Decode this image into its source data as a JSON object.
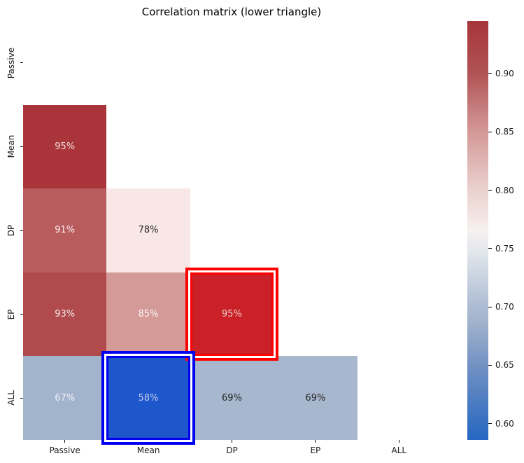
{
  "chart_data": {
    "type": "heatmap",
    "title": "Correlation matrix (lower triangle)",
    "x_categories": [
      "Passive",
      "Mean",
      "DP",
      "EP",
      "ALL"
    ],
    "y_categories": [
      "Passive",
      "Mean",
      "DP",
      "EP",
      "ALL"
    ],
    "triangle": "lower, diagonal excluded",
    "grid": false,
    "cells": [
      {
        "row": 1,
        "col": 0,
        "row_label": "Mean",
        "col_label": "Passive",
        "label": "95%",
        "value": 0.95,
        "bg": "#a93439",
        "text_color": "#f2e2e1"
      },
      {
        "row": 2,
        "col": 0,
        "row_label": "DP",
        "col_label": "Passive",
        "label": "91%",
        "value": 0.91,
        "bg": "#b95c5e",
        "text_color": "#f8eded"
      },
      {
        "row": 2,
        "col": 1,
        "row_label": "DP",
        "col_label": "Mean",
        "label": "78%",
        "value": 0.78,
        "bg": "#f8e7e6",
        "text_color": "#262626"
      },
      {
        "row": 3,
        "col": 0,
        "row_label": "EP",
        "col_label": "Passive",
        "label": "93%",
        "value": 0.93,
        "bg": "#b04a4c",
        "text_color": "#f5e8e8"
      },
      {
        "row": 3,
        "col": 1,
        "row_label": "EP",
        "col_label": "Mean",
        "label": "85%",
        "value": 0.85,
        "bg": "#d49a98",
        "text_color": "#fcf5f4"
      },
      {
        "row": 3,
        "col": 2,
        "row_label": "EP",
        "col_label": "DP",
        "label": "95%",
        "value": 0.95,
        "bg": "#c92127",
        "text_color": "#edc9c7",
        "highlight": "red"
      },
      {
        "row": 4,
        "col": 0,
        "row_label": "ALL",
        "col_label": "Passive",
        "label": "67%",
        "value": 0.67,
        "bg": "#a2b3cc",
        "text_color": "#eff2f7"
      },
      {
        "row": 4,
        "col": 1,
        "row_label": "ALL",
        "col_label": "Mean",
        "label": "58%",
        "value": 0.58,
        "bg": "#1e56cc",
        "text_color": "#c4cee9",
        "highlight": "blue"
      },
      {
        "row": 4,
        "col": 2,
        "row_label": "ALL",
        "col_label": "DP",
        "label": "69%",
        "value": 0.69,
        "bg": "#a7b7ce",
        "text_color": "#262626"
      },
      {
        "row": 4,
        "col": 3,
        "row_label": "ALL",
        "col_label": "EP",
        "label": "69%",
        "value": 0.69,
        "bg": "#a7b7ce",
        "text_color": "#262626"
      }
    ],
    "highlight_colors": {
      "red": "#ff0000",
      "blue": "#0000ee"
    },
    "colorbar": {
      "position": "right",
      "vmin": 0.586,
      "vmax": 0.945,
      "tick_labels": [
        "0.90",
        "0.85",
        "0.80",
        "0.75",
        "0.70",
        "0.65",
        "0.60"
      ],
      "tick_values": [
        0.9,
        0.85,
        0.8,
        0.75,
        0.7,
        0.65,
        0.6
      ],
      "gradient_stops": [
        {
          "pos": 0,
          "color": "#a63539"
        },
        {
          "pos": 12.5,
          "color": "#b15356"
        },
        {
          "pos": 26.5,
          "color": "#d39997"
        },
        {
          "pos": 40,
          "color": "#ead0cd"
        },
        {
          "pos": 50,
          "color": "#f6f0ef"
        },
        {
          "pos": 55,
          "color": "#e2e7ed"
        },
        {
          "pos": 68,
          "color": "#aebdd3"
        },
        {
          "pos": 71,
          "color": "#a5b6ce"
        },
        {
          "pos": 82,
          "color": "#7392c3"
        },
        {
          "pos": 96,
          "color": "#3670c1"
        },
        {
          "pos": 100,
          "color": "#2667c3"
        }
      ]
    }
  }
}
